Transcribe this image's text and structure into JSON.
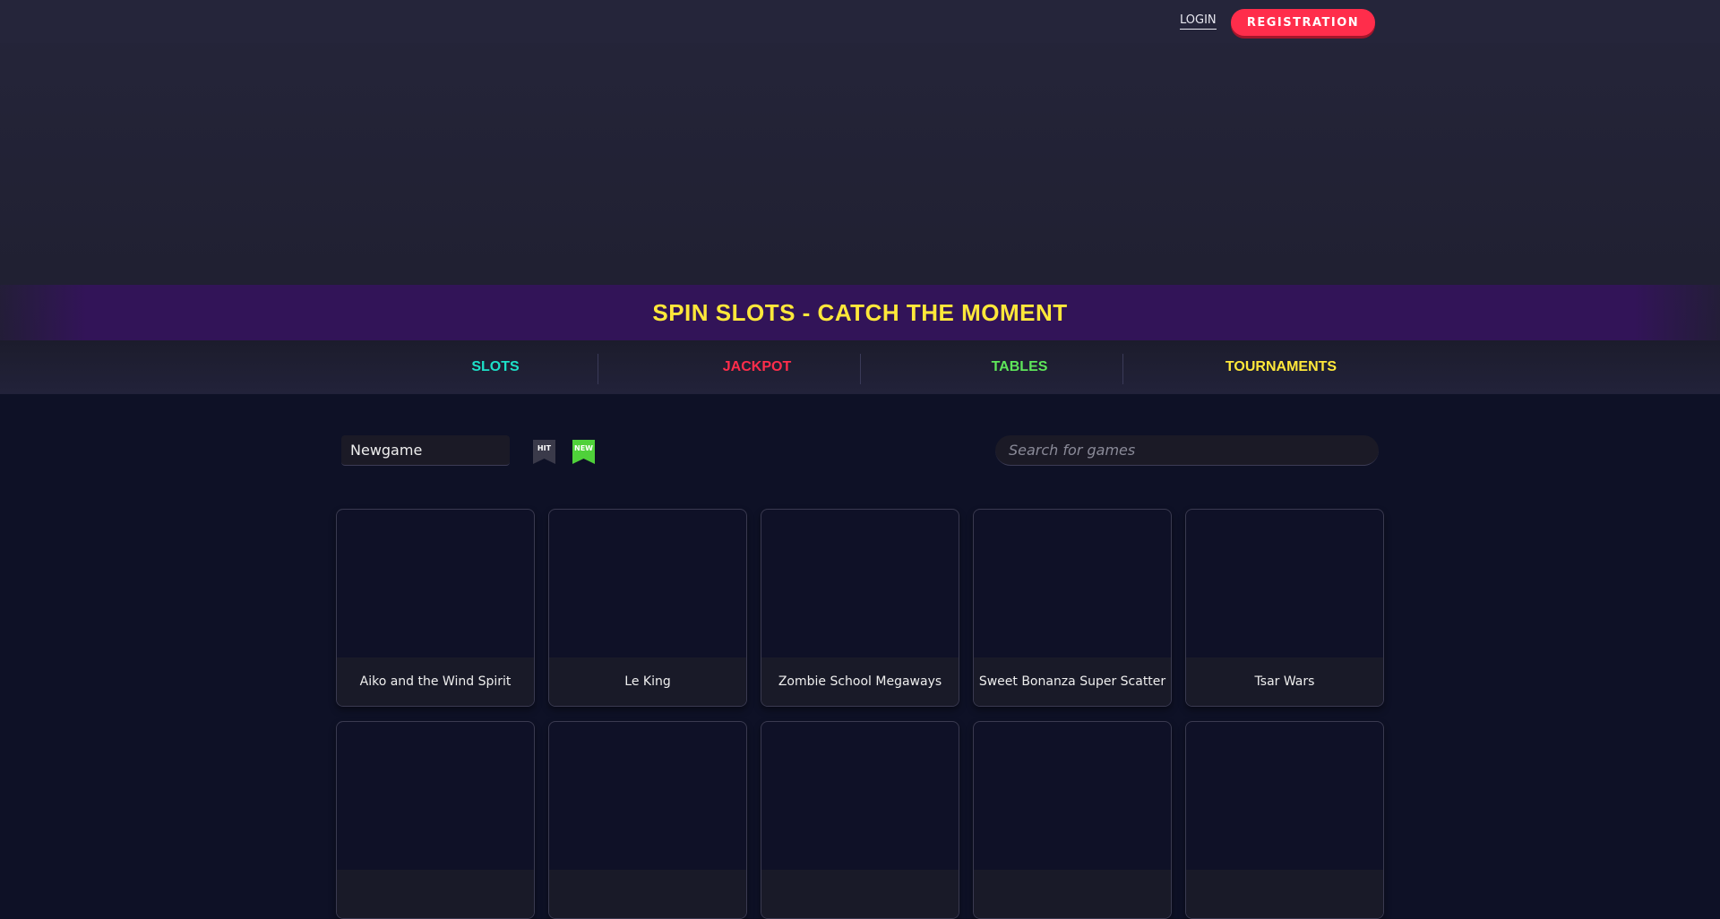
{
  "header": {
    "login_label": "LOGIN",
    "register_label": "REGISTRATION"
  },
  "banner": {
    "title": "SPIN SLOTS - CATCH THE MOMENT"
  },
  "nav": [
    {
      "label": "SLOTS",
      "color": "#1de0c8"
    },
    {
      "label": "JACKPOT",
      "color": "#ff2d4b"
    },
    {
      "label": "TABLES",
      "color": "#5ee65a"
    },
    {
      "label": "TOURNAMENTS",
      "color": "#ffe83a"
    }
  ],
  "filters": {
    "sort_value": "Newgame",
    "hit_label": "HIT",
    "new_label": "NEW",
    "hit_color": "#3a3a4a",
    "new_color": "#4fd13a",
    "search_placeholder": "Search for games"
  },
  "games": [
    "Aiko and the Wind Spirit",
    "Le King",
    "Zombie School Megaways",
    "Sweet Bonanza Super Scatter",
    "Tsar Wars",
    "",
    "",
    "",
    "",
    ""
  ]
}
